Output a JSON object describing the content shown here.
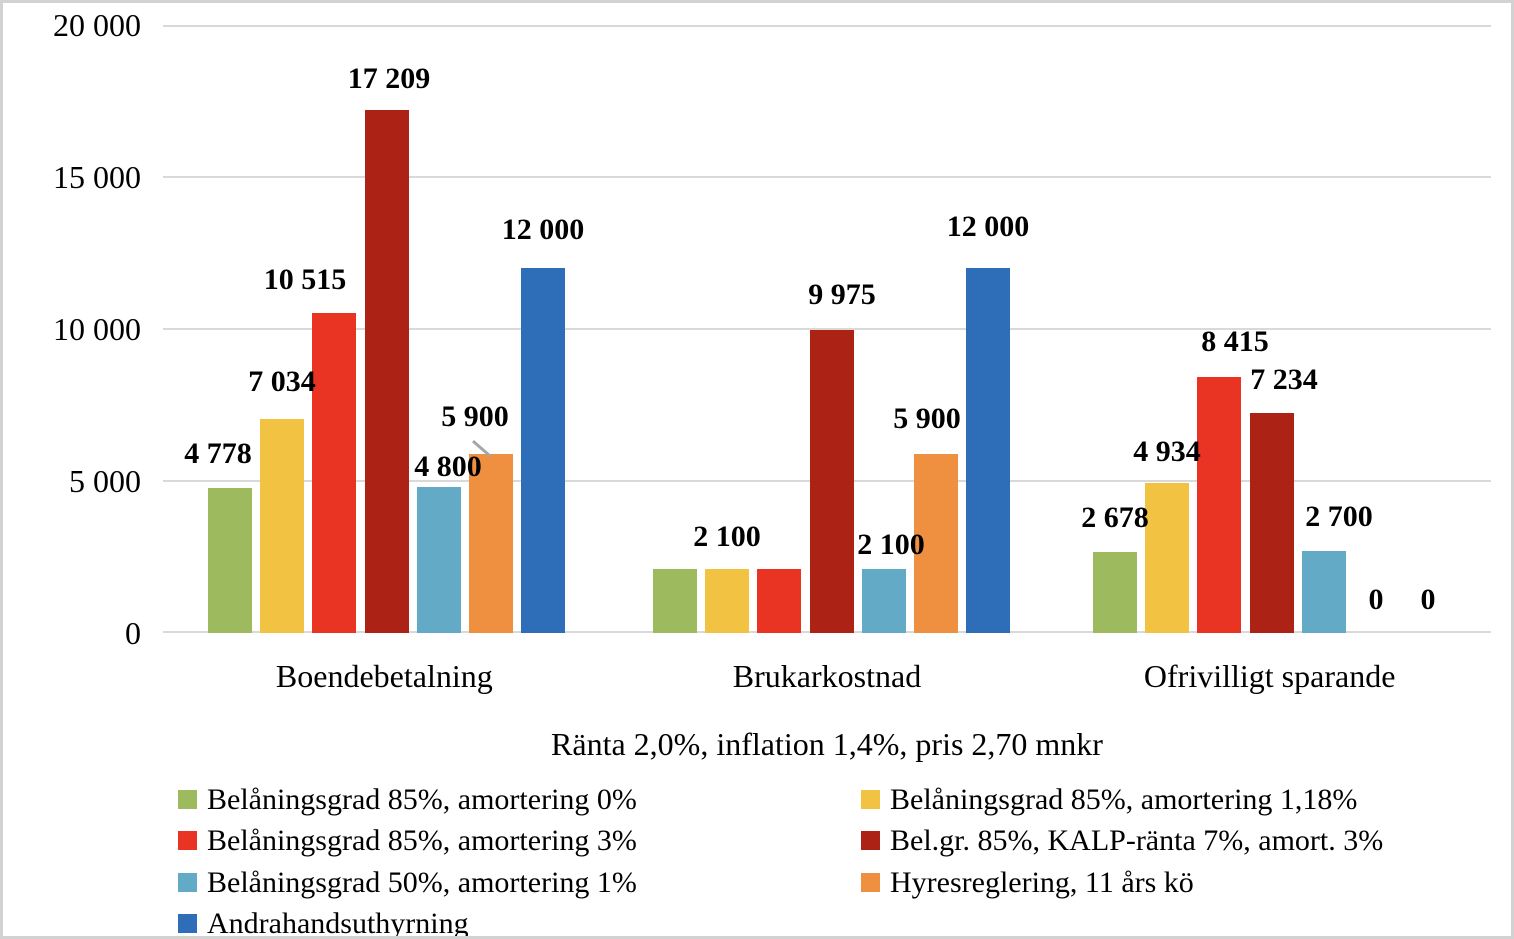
{
  "chart_data": {
    "type": "bar",
    "title": "Ränta 2,0%, inflation 1,4%, pris 2,70 mnkr",
    "categories": [
      "Boendebetalning",
      "Brukarkostnad",
      "Ofrivilligt sparande"
    ],
    "ylim": [
      0,
      20000
    ],
    "grid": true,
    "legend_position": "bottom, two columns",
    "gridline_color": "#d9d9d9",
    "leader_line_color": "#a6a6a6",
    "yticks": [
      {
        "value": 20000,
        "label": "20 000"
      },
      {
        "value": 15000,
        "label": "15 000"
      },
      {
        "value": 10000,
        "label": "10 000"
      },
      {
        "value": 5000,
        "label": "5 000"
      },
      {
        "value": 0,
        "label": "0"
      }
    ],
    "series": [
      {
        "name": "Belåningsgrad 85%, amortering 0%",
        "color": "#9eba5e",
        "values": [
          4778,
          2100,
          2678
        ],
        "labels": [
          {
            "text": "4 778",
            "show": true,
            "dx": -12,
            "dy": 3
          },
          {
            "text": "2 100",
            "show": false,
            "dx": 0,
            "dy": 0
          },
          {
            "text": "2 678",
            "show": true,
            "dx": 0,
            "dy": 3
          }
        ]
      },
      {
        "name": "Belåningsgrad 85%, amortering 1,18%",
        "color": "#f2c342",
        "values": [
          7034,
          2100,
          4934
        ],
        "labels": [
          {
            "text": "7 034",
            "show": true,
            "dx": 0,
            "dy": 6
          },
          {
            "text": "2 100",
            "show": true,
            "dx": 0,
            "dy": 1
          },
          {
            "text": "4 934",
            "show": true,
            "dx": 0,
            "dy": 0
          }
        ]
      },
      {
        "name": "Belåningsgrad 85%, amortering 3%",
        "color": "#e93323",
        "values": [
          10515,
          2100,
          8415
        ],
        "labels": [
          {
            "text": "10 515",
            "show": true,
            "dx": -29,
            "dy": 2
          },
          {
            "text": "2 100",
            "show": false,
            "dx": 0,
            "dy": 0
          },
          {
            "text": "8 415",
            "show": true,
            "dx": 16,
            "dy": 4
          }
        ]
      },
      {
        "name": "Bel.gr. 85%, KALP-ränta 7%, amort. 3%",
        "color": "#ac2316",
        "values": [
          17209,
          9975,
          7234
        ],
        "labels": [
          {
            "text": "17 209",
            "show": true,
            "dx": 2,
            "dy": 0
          },
          {
            "text": "9 975",
            "show": true,
            "dx": 10,
            "dy": 4
          },
          {
            "text": "7 234",
            "show": true,
            "dx": 12,
            "dy": 2
          }
        ]
      },
      {
        "name": "Belåningsgrad 50%, amortering 1%",
        "color": "#62aac5",
        "values": [
          4800,
          2100,
          2700
        ],
        "labels": [
          {
            "text": "4 800",
            "show": true,
            "dx": 9,
            "dy": -11
          },
          {
            "text": "2 100",
            "show": true,
            "dx": 7,
            "dy": -7
          },
          {
            "text": "2 700",
            "show": true,
            "dx": 15,
            "dy": 3
          }
        ]
      },
      {
        "name": "Hyresreglering, 11 års kö",
        "color": "#ef9040",
        "values": [
          5900,
          5900,
          0
        ],
        "labels": [
          {
            "text": "5 900",
            "show": true,
            "dx": -16,
            "dy": 6,
            "leader": true
          },
          {
            "text": "5 900",
            "show": true,
            "dx": -9,
            "dy": 4
          },
          {
            "text": "0",
            "show": true,
            "dx": 0,
            "dy": 2
          }
        ]
      },
      {
        "name": "Andrahandsuthyrning",
        "color": "#2e6db8",
        "values": [
          12000,
          12000,
          0
        ],
        "labels": [
          {
            "text": "12 000",
            "show": true,
            "dx": 0,
            "dy": 7
          },
          {
            "text": "12 000",
            "show": true,
            "dx": 0,
            "dy": 10
          },
          {
            "text": "0",
            "show": true,
            "dx": 0,
            "dy": 2
          }
        ]
      }
    ]
  }
}
